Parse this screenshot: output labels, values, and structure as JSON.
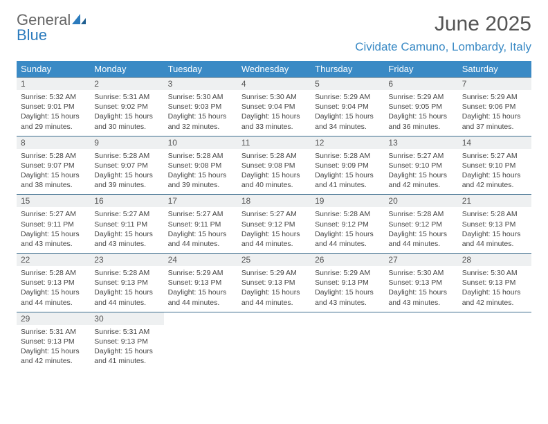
{
  "brand": {
    "word1": "General",
    "word2": "Blue"
  },
  "title": "June 2025",
  "location": "Cividate Camuno, Lombardy, Italy",
  "colors": {
    "header_bg": "#3a8ac5",
    "header_text": "#ffffff",
    "daynum_bg": "#eef0f1",
    "border": "#3a6b8c",
    "title_color": "#555555",
    "location_color": "#3a8ac5"
  },
  "weekdays": [
    "Sunday",
    "Monday",
    "Tuesday",
    "Wednesday",
    "Thursday",
    "Friday",
    "Saturday"
  ],
  "days": [
    {
      "n": "1",
      "sr": "5:32 AM",
      "ss": "9:01 PM",
      "dl": "15 hours and 29 minutes."
    },
    {
      "n": "2",
      "sr": "5:31 AM",
      "ss": "9:02 PM",
      "dl": "15 hours and 30 minutes."
    },
    {
      "n": "3",
      "sr": "5:30 AM",
      "ss": "9:03 PM",
      "dl": "15 hours and 32 minutes."
    },
    {
      "n": "4",
      "sr": "5:30 AM",
      "ss": "9:04 PM",
      "dl": "15 hours and 33 minutes."
    },
    {
      "n": "5",
      "sr": "5:29 AM",
      "ss": "9:04 PM",
      "dl": "15 hours and 34 minutes."
    },
    {
      "n": "6",
      "sr": "5:29 AM",
      "ss": "9:05 PM",
      "dl": "15 hours and 36 minutes."
    },
    {
      "n": "7",
      "sr": "5:29 AM",
      "ss": "9:06 PM",
      "dl": "15 hours and 37 minutes."
    },
    {
      "n": "8",
      "sr": "5:28 AM",
      "ss": "9:07 PM",
      "dl": "15 hours and 38 minutes."
    },
    {
      "n": "9",
      "sr": "5:28 AM",
      "ss": "9:07 PM",
      "dl": "15 hours and 39 minutes."
    },
    {
      "n": "10",
      "sr": "5:28 AM",
      "ss": "9:08 PM",
      "dl": "15 hours and 39 minutes."
    },
    {
      "n": "11",
      "sr": "5:28 AM",
      "ss": "9:08 PM",
      "dl": "15 hours and 40 minutes."
    },
    {
      "n": "12",
      "sr": "5:28 AM",
      "ss": "9:09 PM",
      "dl": "15 hours and 41 minutes."
    },
    {
      "n": "13",
      "sr": "5:27 AM",
      "ss": "9:10 PM",
      "dl": "15 hours and 42 minutes."
    },
    {
      "n": "14",
      "sr": "5:27 AM",
      "ss": "9:10 PM",
      "dl": "15 hours and 42 minutes."
    },
    {
      "n": "15",
      "sr": "5:27 AM",
      "ss": "9:11 PM",
      "dl": "15 hours and 43 minutes."
    },
    {
      "n": "16",
      "sr": "5:27 AM",
      "ss": "9:11 PM",
      "dl": "15 hours and 43 minutes."
    },
    {
      "n": "17",
      "sr": "5:27 AM",
      "ss": "9:11 PM",
      "dl": "15 hours and 44 minutes."
    },
    {
      "n": "18",
      "sr": "5:27 AM",
      "ss": "9:12 PM",
      "dl": "15 hours and 44 minutes."
    },
    {
      "n": "19",
      "sr": "5:28 AM",
      "ss": "9:12 PM",
      "dl": "15 hours and 44 minutes."
    },
    {
      "n": "20",
      "sr": "5:28 AM",
      "ss": "9:12 PM",
      "dl": "15 hours and 44 minutes."
    },
    {
      "n": "21",
      "sr": "5:28 AM",
      "ss": "9:13 PM",
      "dl": "15 hours and 44 minutes."
    },
    {
      "n": "22",
      "sr": "5:28 AM",
      "ss": "9:13 PM",
      "dl": "15 hours and 44 minutes."
    },
    {
      "n": "23",
      "sr": "5:28 AM",
      "ss": "9:13 PM",
      "dl": "15 hours and 44 minutes."
    },
    {
      "n": "24",
      "sr": "5:29 AM",
      "ss": "9:13 PM",
      "dl": "15 hours and 44 minutes."
    },
    {
      "n": "25",
      "sr": "5:29 AM",
      "ss": "9:13 PM",
      "dl": "15 hours and 44 minutes."
    },
    {
      "n": "26",
      "sr": "5:29 AM",
      "ss": "9:13 PM",
      "dl": "15 hours and 43 minutes."
    },
    {
      "n": "27",
      "sr": "5:30 AM",
      "ss": "9:13 PM",
      "dl": "15 hours and 43 minutes."
    },
    {
      "n": "28",
      "sr": "5:30 AM",
      "ss": "9:13 PM",
      "dl": "15 hours and 42 minutes."
    },
    {
      "n": "29",
      "sr": "5:31 AM",
      "ss": "9:13 PM",
      "dl": "15 hours and 42 minutes."
    },
    {
      "n": "30",
      "sr": "5:31 AM",
      "ss": "9:13 PM",
      "dl": "15 hours and 41 minutes."
    }
  ],
  "labels": {
    "sunrise": "Sunrise:",
    "sunset": "Sunset:",
    "daylight": "Daylight:"
  }
}
